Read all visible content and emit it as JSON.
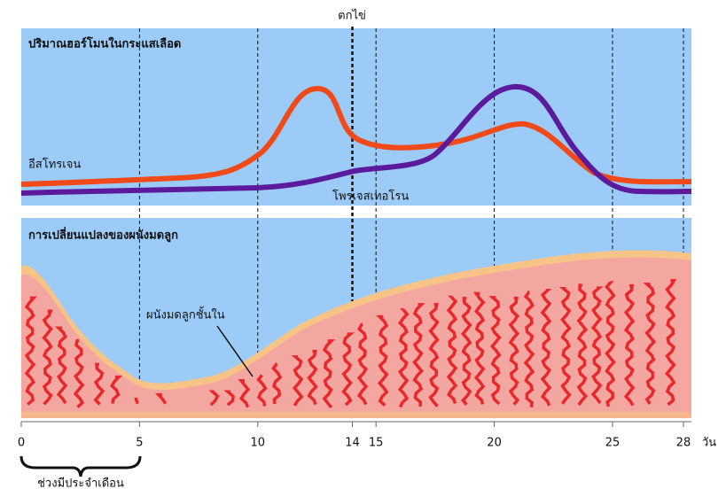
{
  "marker_label": "ตกไข่",
  "hormone_panel": {
    "title": "ปริมาณฮอร์โมนในกระแสเลือด",
    "estrogen_label": "อีสโทรเจน",
    "progesterone_label": "โพรเจสเทอโรน"
  },
  "uterus_panel": {
    "title": "การเปลี่ยนแปลงของผนังมดลูก",
    "endometrium_label": "ผนังมดลูกชั้นใน"
  },
  "axis": {
    "ticks": [
      0,
      5,
      10,
      14,
      15,
      20,
      25,
      28
    ],
    "unit": "วัน"
  },
  "period_label": "ช่วงมีประจำเดือน"
}
